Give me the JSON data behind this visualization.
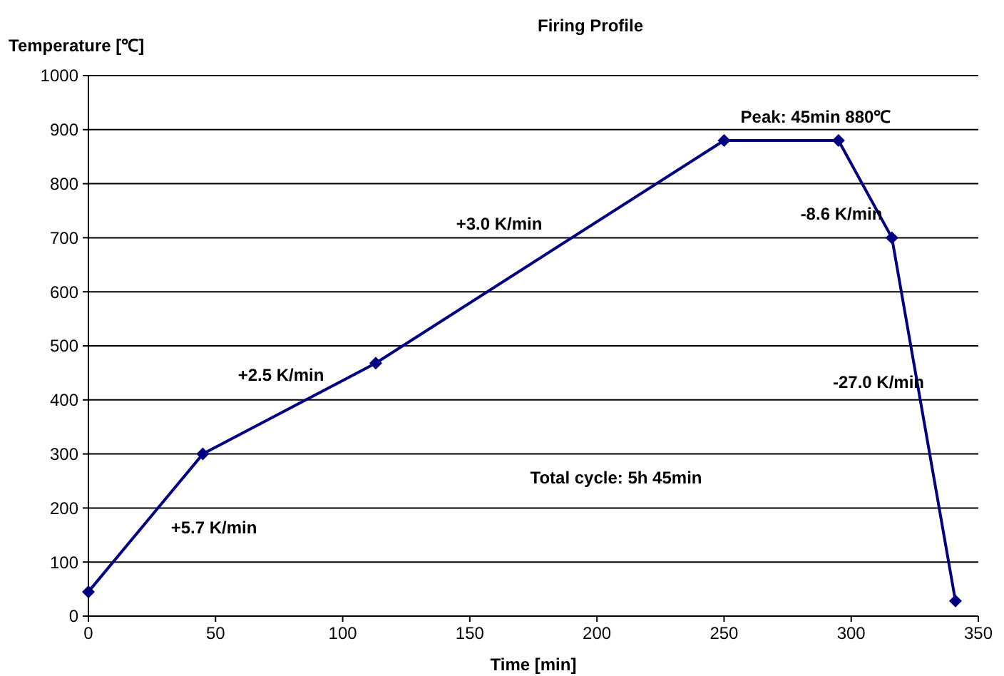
{
  "chart_data": {
    "type": "line",
    "title": "Firing Profile",
    "xlabel": "Time [min]",
    "ylabel": "Temperature [℃]",
    "x": [
      0,
      45,
      113,
      250,
      295,
      316,
      341
    ],
    "series": [
      {
        "color": "#000080",
        "values": [
          45,
          300,
          468,
          880,
          880,
          700,
          28
        ]
      }
    ],
    "xlim": [
      0,
      350
    ],
    "xticks": [
      0,
      50,
      100,
      150,
      200,
      250,
      300,
      350
    ],
    "ylim": [
      0,
      1000
    ],
    "yticks": [
      0,
      100,
      200,
      300,
      400,
      500,
      600,
      700,
      800,
      900,
      1000
    ],
    "grid": "y",
    "marker": "diamond",
    "line_style": "solid",
    "annotations": [
      "+5.7 K/min",
      "+2.5 K/min",
      "+3.0 K/min",
      "Peak: 45min 880℃",
      "-8.6 K/min",
      "-27.0 K/min",
      "Total cycle: 5h 45min"
    ]
  }
}
